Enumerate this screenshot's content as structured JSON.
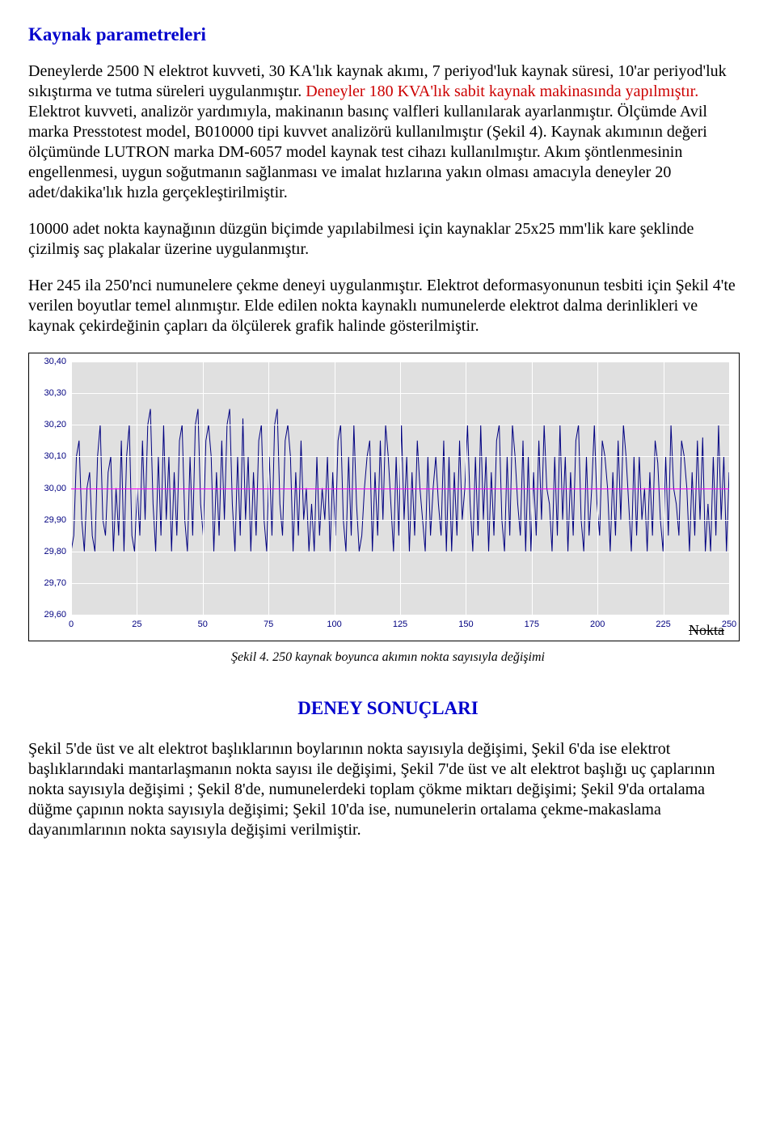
{
  "section_title": "Kaynak parametreleri",
  "paragraph1_black_a": "Deneylerde 2500 N elektrot kuvveti, 30 KA'lık kaynak akımı, 7 periyod'luk kaynak süresi, 10'ar periyod'luk sıkıştırma ve tutma süreleri uygulanmıştır. ",
  "paragraph1_red": "Deneyler 180 KVA'lık sabit kaynak makinasında yapılmıştır. ",
  "paragraph1_black_b": "Elektrot kuvveti, analizör yardımıyla, makinanın basınç valfleri kullanılarak ayarlanmıştır. Ölçümde Avil marka Presstotest model, B010000 tipi kuvvet analizörü kullanılmıştır (Şekil 4). Kaynak akımının değeri ölçümünde LUTRON marka DM-6057 model kaynak test cihazı kullanılmıştır. Akım şöntlenmesinin engellenmesi, uygun soğutmanın sağlanması ve imalat hızlarına yakın olması amacıyla deneyler 20 adet/dakika'lık hızla gerçekleştirilmiştir.",
  "paragraph2": "10000 adet nokta kaynağının düzgün biçimde yapılabilmesi için kaynaklar 25x25 mm'lik kare şeklinde çizilmiş saç plakalar üzerine uygulanmıştır.",
  "paragraph3": "Her 245 ila 250'nci numunelere çekme deneyi uygulanmıştır. Elektrot deformasyonunun tesbiti için Şekil 4'te verilen boyutlar temel alınmıştır. Elde edilen nokta kaynaklı numunelerde elektrot dalma derinlikleri ve kaynak çekirdeğinin çapları da ölçülerek grafik halinde gösterilmiştir.",
  "chart": {
    "type": "line",
    "ylim": [
      29.6,
      30.4
    ],
    "yticks": [
      "30,40",
      "30,30",
      "30,20",
      "30,10",
      "30,00",
      "29,90",
      "29,80",
      "29,70",
      "29,60"
    ],
    "xlim": [
      0,
      250
    ],
    "xticks": [
      "0",
      "25",
      "50",
      "75",
      "100",
      "125",
      "150",
      "175",
      "200",
      "225",
      "250"
    ],
    "xlabel": "Nokta",
    "ref_line_y": 30.0,
    "background_color": "#e0e0e0",
    "grid_color": "#ffffff",
    "line_color": "#000080",
    "ref_line_color": "#ff00ff",
    "ytick_label_color": "#000080",
    "xtick_label_color": "#000080",
    "series": [
      29.8,
      29.85,
      30.1,
      30.15,
      29.9,
      29.8,
      30.0,
      30.05,
      29.85,
      29.8,
      30.1,
      30.2,
      29.9,
      29.85,
      30.05,
      30.1,
      29.8,
      30.0,
      29.85,
      30.15,
      29.8,
      30.1,
      30.2,
      29.85,
      29.8,
      30.0,
      29.85,
      30.15,
      29.9,
      30.2,
      30.25,
      29.95,
      29.8,
      30.1,
      29.85,
      30.2,
      29.9,
      30.1,
      29.8,
      30.05,
      29.85,
      30.15,
      30.2,
      29.9,
      29.8,
      30.1,
      29.85,
      30.2,
      30.25,
      29.95,
      29.85,
      30.15,
      30.2,
      30.1,
      29.8,
      30.05,
      29.85,
      30.15,
      29.9,
      30.2,
      30.25,
      29.95,
      29.8,
      30.1,
      29.85,
      30.22,
      29.9,
      30.1,
      29.8,
      30.05,
      29.85,
      30.15,
      30.2,
      29.9,
      29.8,
      30.1,
      29.85,
      30.2,
      30.25,
      29.95,
      29.85,
      30.15,
      30.2,
      30.1,
      29.8,
      30.05,
      29.85,
      30.15,
      29.9,
      30.0,
      29.8,
      29.95,
      29.8,
      30.1,
      29.85,
      30.0,
      29.9,
      30.1,
      29.8,
      30.05,
      29.85,
      30.15,
      30.2,
      29.9,
      29.8,
      30.1,
      29.85,
      30.2,
      29.95,
      29.8,
      29.85,
      30.0,
      30.1,
      30.15,
      29.8,
      30.05,
      29.85,
      30.15,
      29.9,
      30.2,
      30.1,
      29.95,
      29.8,
      30.1,
      29.85,
      30.2,
      29.9,
      30.1,
      29.8,
      30.05,
      29.85,
      30.15,
      30.0,
      29.9,
      29.8,
      30.1,
      29.85,
      30.0,
      30.1,
      29.95,
      29.85,
      30.15,
      29.8,
      30.1,
      29.8,
      30.05,
      29.85,
      30.15,
      29.9,
      30.0,
      30.2,
      29.95,
      29.8,
      30.1,
      29.85,
      30.2,
      29.9,
      30.1,
      29.8,
      30.05,
      29.85,
      30.15,
      30.2,
      29.9,
      29.8,
      30.1,
      29.85,
      30.2,
      30.1,
      29.95,
      29.85,
      30.15,
      29.8,
      30.1,
      29.8,
      30.05,
      29.85,
      30.15,
      29.9,
      30.2,
      30.0,
      29.95,
      29.8,
      30.1,
      29.85,
      30.2,
      29.9,
      30.1,
      29.8,
      30.05,
      29.85,
      30.15,
      30.2,
      29.9,
      29.8,
      30.1,
      29.85,
      30.0,
      30.2,
      29.95,
      29.85,
      30.15,
      30.1,
      30.0,
      29.8,
      30.05,
      29.85,
      30.15,
      29.9,
      30.2,
      30.1,
      29.95,
      29.8,
      30.1,
      29.85,
      30.1,
      29.9,
      30.0,
      29.8,
      30.05,
      29.85,
      30.15,
      30.08,
      29.9,
      29.8,
      30.1,
      29.85,
      30.2,
      30.0,
      29.95,
      29.85,
      30.15,
      30.1,
      30.0,
      29.8,
      30.05,
      29.85,
      30.15,
      29.9,
      30.16,
      29.8,
      29.95,
      29.8,
      30.1,
      29.85,
      30.2,
      29.9,
      30.1,
      29.8,
      30.05
    ]
  },
  "figure_caption": "Şekil 4. 250 kaynak boyunca akımın nokta sayısıyla değişimi",
  "results_title": "DENEY SONUÇLARI",
  "paragraph4": "Şekil 5'de üst ve alt elektrot başlıklarının boylarının nokta sayısıyla değişimi, Şekil 6'da ise elektrot başlıklarındaki mantarlaşmanın nokta sayısı ile değişimi, Şekil 7'de üst ve alt elektrot başlığı uç çaplarının nokta sayısıyla değişimi ; Şekil 8'de, numunelerdeki toplam çökme miktarı değişimi; Şekil 9'da ortalama düğme çapının nokta sayısıyla değişimi; Şekil 10'da ise, numunelerin ortalama çekme-makaslama dayanımlarının nokta sayısıyla değişimi verilmiştir."
}
